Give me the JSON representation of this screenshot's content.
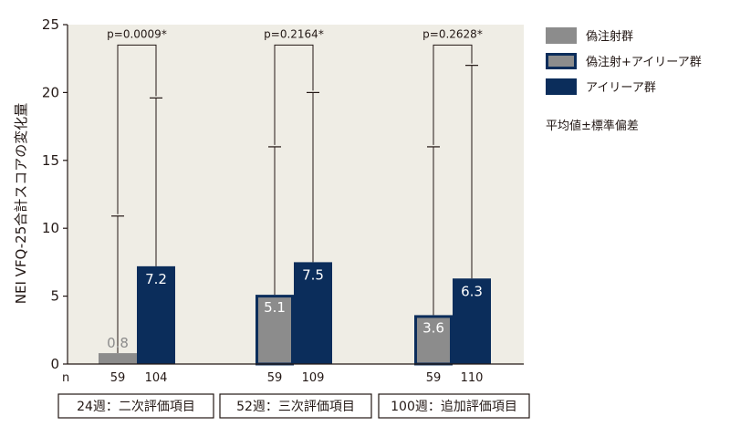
{
  "chart_data": {
    "type": "bar",
    "ylabel": "NEI VFQ-25合計スコアの変化量",
    "ylim": [
      0,
      25
    ],
    "yticks": [
      0,
      5,
      10,
      15,
      20,
      25
    ],
    "grid": false,
    "legend_position": "right",
    "n_label": "n",
    "note": "平均値±標準偏差",
    "series": [
      {
        "name": "偽注射群",
        "color": "#8c8c8c",
        "border": "#8c8c8c"
      },
      {
        "name": "偽注射+アイリーア群",
        "color": "#8c8c8c",
        "border": "#0b2d5b"
      },
      {
        "name": "アイリーア群",
        "color": "#0b2d5b",
        "border": "#0b2d5b"
      }
    ],
    "groups": [
      {
        "label": "24週：二次評価項目",
        "p_value": "p=0.0009*",
        "bars": [
          {
            "series": 0,
            "value": 0.8,
            "label": "0.8",
            "sd_upper": 10.9,
            "n": "59"
          },
          {
            "series": 2,
            "value": 7.2,
            "label": "7.2",
            "sd_upper": 19.6,
            "n": "104"
          }
        ]
      },
      {
        "label": "52週：三次評価項目",
        "p_value": "p=0.2164*",
        "bars": [
          {
            "series": 1,
            "value": 5.1,
            "label": "5.1",
            "sd_upper": 16.0,
            "n": "59"
          },
          {
            "series": 2,
            "value": 7.5,
            "label": "7.5",
            "sd_upper": 20.0,
            "n": "109"
          }
        ]
      },
      {
        "label": "100週：追加評価項目",
        "p_value": "p=0.2628*",
        "bars": [
          {
            "series": 1,
            "value": 3.6,
            "label": "3.6",
            "sd_upper": 16.0,
            "n": "59"
          },
          {
            "series": 2,
            "value": 6.3,
            "label": "6.3",
            "sd_upper": 22.0,
            "n": "110"
          }
        ]
      }
    ]
  },
  "colors": {
    "plot_background": "#efede5",
    "axis": "#231815",
    "value_label_dark": "#ffffff",
    "value_label_light": "#ffffff",
    "value_label_small": "#8c8c8c"
  }
}
